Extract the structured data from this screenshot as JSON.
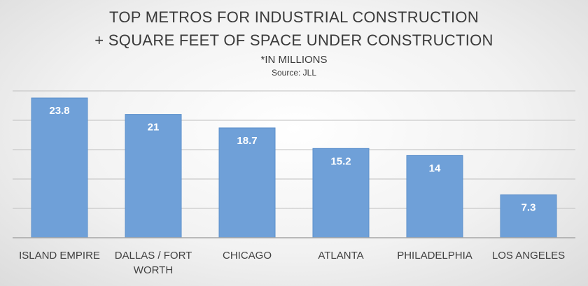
{
  "chart_data": {
    "type": "bar",
    "title_lines": [
      "TOP METROS FOR INDUSTRIAL CONSTRUCTION",
      "+ SQUARE FEET OF SPACE UNDER CONSTRUCTION"
    ],
    "subtitle": "*IN MILLIONS",
    "source": "Source: JLL",
    "categories": [
      [
        "ISLAND EMPIRE"
      ],
      [
        "DALLAS / FORT",
        "WORTH"
      ],
      [
        "CHICAGO"
      ],
      [
        "ATLANTA"
      ],
      [
        "PHILADELPHIA"
      ],
      [
        "LOS ANGELES"
      ]
    ],
    "values": [
      23.8,
      21,
      18.7,
      15.2,
      14,
      7.3
    ],
    "value_labels": [
      "23.8",
      "21",
      "18.7",
      "15.2",
      "14",
      "7.3"
    ],
    "ylim": [
      0,
      25
    ],
    "gridlines": [
      0,
      5,
      10,
      15,
      20,
      25
    ],
    "grid": true,
    "legend": "none",
    "bar_color": "#6fa0d8",
    "bar_border_color": "#5b8fcb",
    "grid_color": "#bfbfbf",
    "axis_color": "#a6a6a6"
  }
}
